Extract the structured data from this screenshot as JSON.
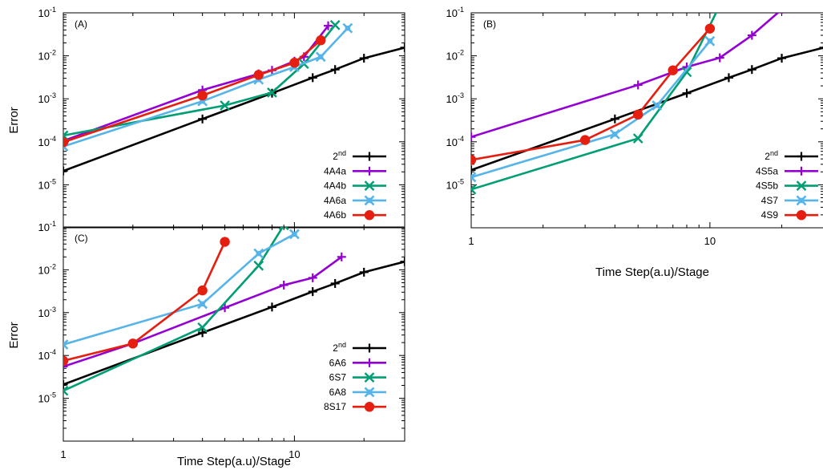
{
  "figure": {
    "shared_labels": {
      "ylabel_top": "Error",
      "ylabel_bottom": "Error",
      "xlabel_bottom": "Time Step(a.u)/Stage"
    }
  },
  "colors": {
    "black": "#000000",
    "purple": "#9400d3",
    "green": "#009e73",
    "blue": "#56b4e9",
    "red": "#e51e10"
  },
  "chart_data": [
    {
      "type": "line",
      "panel_label": "(A)",
      "xscale": "log",
      "yscale": "log",
      "xlim": [
        1,
        30
      ],
      "ylim": [
        1e-06,
        0.1
      ],
      "ylabel": "Error",
      "xlabel": "",
      "xticks": [],
      "yticks": [
        {
          "base": "10",
          "exp": "-5"
        },
        {
          "base": "10",
          "exp": "-4"
        },
        {
          "base": "10",
          "exp": "-3"
        },
        {
          "base": "10",
          "exp": "-2"
        },
        {
          "base": "10",
          "exp": "-1"
        }
      ],
      "legend_position": "bottom-right",
      "series": [
        {
          "name": "2",
          "name_sup": "nd",
          "color": "#000000",
          "marker": "plus",
          "points": [
            [
              1,
              2.1e-05
            ],
            [
              4,
              0.00034
            ],
            [
              8,
              0.00135
            ],
            [
              12,
              0.0031
            ],
            [
              15,
              0.0048
            ],
            [
              20,
              0.0088
            ],
            [
              30,
              0.0155
            ]
          ]
        },
        {
          "name": "4A4a",
          "color": "#9400d3",
          "marker": "plus",
          "points": [
            [
              1,
              0.000105
            ],
            [
              4,
              0.0016
            ],
            [
              7,
              0.0038
            ],
            [
              8,
              0.0046
            ],
            [
              10,
              0.0075
            ],
            [
              11,
              0.0095
            ],
            [
              14,
              0.05
            ]
          ]
        },
        {
          "name": "4A4b",
          "color": "#009e73",
          "marker": "x",
          "points": [
            [
              1,
              0.00014
            ],
            [
              5,
              0.0007
            ],
            [
              8,
              0.0014
            ],
            [
              11,
              0.0065
            ],
            [
              15,
              0.052
            ]
          ]
        },
        {
          "name": "4A6a",
          "color": "#56b4e9",
          "marker": "xbox",
          "points": [
            [
              1,
              7.8e-05
            ],
            [
              4,
              0.00088
            ],
            [
              7,
              0.0028
            ],
            [
              10,
              0.0055
            ],
            [
              13,
              0.0095
            ],
            [
              17,
              0.044
            ]
          ]
        },
        {
          "name": "4A6b",
          "color": "#e51e10",
          "marker": "circle",
          "points": [
            [
              1,
              9.8e-05
            ],
            [
              4,
              0.0012
            ],
            [
              7,
              0.0036
            ],
            [
              10,
              0.0069
            ],
            [
              13,
              0.023
            ]
          ]
        }
      ]
    },
    {
      "type": "line",
      "panel_label": "(B)",
      "xscale": "log",
      "yscale": "log",
      "xlim": [
        1,
        30
      ],
      "ylim": [
        1e-06,
        0.1
      ],
      "ylabel": "",
      "xlabel": "Time Step(a.u)/Stage",
      "xticks": [
        "1",
        "10"
      ],
      "yticks": [
        {
          "base": "10",
          "exp": "-5"
        },
        {
          "base": "10",
          "exp": "-4"
        },
        {
          "base": "10",
          "exp": "-3"
        },
        {
          "base": "10",
          "exp": "-2"
        },
        {
          "base": "10",
          "exp": "-1"
        }
      ],
      "legend_position": "bottom-right",
      "series": [
        {
          "name": "2",
          "name_sup": "nd",
          "color": "#000000",
          "marker": "plus",
          "points": [
            [
              1,
              2.2e-05
            ],
            [
              4,
              0.00034
            ],
            [
              8,
              0.00135
            ],
            [
              12,
              0.0031
            ],
            [
              15,
              0.0048
            ],
            [
              20,
              0.0088
            ],
            [
              30,
              0.0155
            ]
          ]
        },
        {
          "name": "4S5a",
          "color": "#9400d3",
          "marker": "plus",
          "points": [
            [
              1,
              0.00013
            ],
            [
              5,
              0.0021
            ],
            [
              8,
              0.0055
            ],
            [
              11,
              0.009
            ],
            [
              15,
              0.03
            ],
            [
              20,
              0.12
            ]
          ]
        },
        {
          "name": "4S5b",
          "color": "#009e73",
          "marker": "x",
          "points": [
            [
              1,
              7.8e-06
            ],
            [
              5,
              0.00012
            ],
            [
              8,
              0.0042
            ],
            [
              11,
              0.15
            ]
          ]
        },
        {
          "name": "4S7",
          "color": "#56b4e9",
          "marker": "xbox",
          "points": [
            [
              1,
              1.5e-05
            ],
            [
              4,
              0.00015
            ],
            [
              6,
              0.0007
            ],
            [
              10,
              0.022
            ]
          ]
        },
        {
          "name": "4S9",
          "color": "#e51e10",
          "marker": "circle",
          "points": [
            [
              1,
              3.8e-05
            ],
            [
              3,
              0.00011
            ],
            [
              5,
              0.00043
            ],
            [
              7,
              0.0046
            ],
            [
              10,
              0.043
            ]
          ]
        }
      ]
    },
    {
      "type": "line",
      "panel_label": "(C)",
      "xscale": "log",
      "yscale": "log",
      "xlim": [
        1,
        30
      ],
      "ylim": [
        1e-06,
        0.1
      ],
      "ylabel": "Error",
      "xlabel": "Time Step(a.u)/Stage",
      "xticks": [
        "1",
        "10"
      ],
      "yticks": [
        {
          "base": "10",
          "exp": "-5"
        },
        {
          "base": "10",
          "exp": "-4"
        },
        {
          "base": "10",
          "exp": "-3"
        },
        {
          "base": "10",
          "exp": "-2"
        },
        {
          "base": "10",
          "exp": "-1"
        }
      ],
      "legend_position": "bottom-right",
      "series": [
        {
          "name": "2",
          "name_sup": "nd",
          "color": "#000000",
          "marker": "plus",
          "points": [
            [
              1,
              2.1e-05
            ],
            [
              4,
              0.00034
            ],
            [
              8,
              0.00135
            ],
            [
              12,
              0.0031
            ],
            [
              15,
              0.0048
            ],
            [
              20,
              0.0088
            ],
            [
              30,
              0.0155
            ]
          ]
        },
        {
          "name": "6A6",
          "color": "#9400d3",
          "marker": "plus",
          "points": [
            [
              1,
              5.5e-05
            ],
            [
              2,
              0.00019
            ],
            [
              5,
              0.0013
            ],
            [
              9,
              0.0044
            ],
            [
              12,
              0.0065
            ],
            [
              16,
              0.02
            ]
          ]
        },
        {
          "name": "6S7",
          "color": "#009e73",
          "marker": "x",
          "points": [
            [
              1,
              1.5e-05
            ],
            [
              4,
              0.00045
            ],
            [
              7,
              0.0125
            ],
            [
              9,
              0.11
            ]
          ]
        },
        {
          "name": "6A8",
          "color": "#56b4e9",
          "marker": "xbox",
          "points": [
            [
              1,
              0.00018
            ],
            [
              4,
              0.0016
            ],
            [
              7,
              0.024
            ],
            [
              10,
              0.068
            ]
          ]
        },
        {
          "name": "8S17",
          "color": "#e51e10",
          "marker": "circle",
          "points": [
            [
              1,
              7.5e-05
            ],
            [
              2,
              0.00019
            ],
            [
              4,
              0.0033
            ],
            [
              5,
              0.045
            ]
          ]
        }
      ]
    }
  ]
}
